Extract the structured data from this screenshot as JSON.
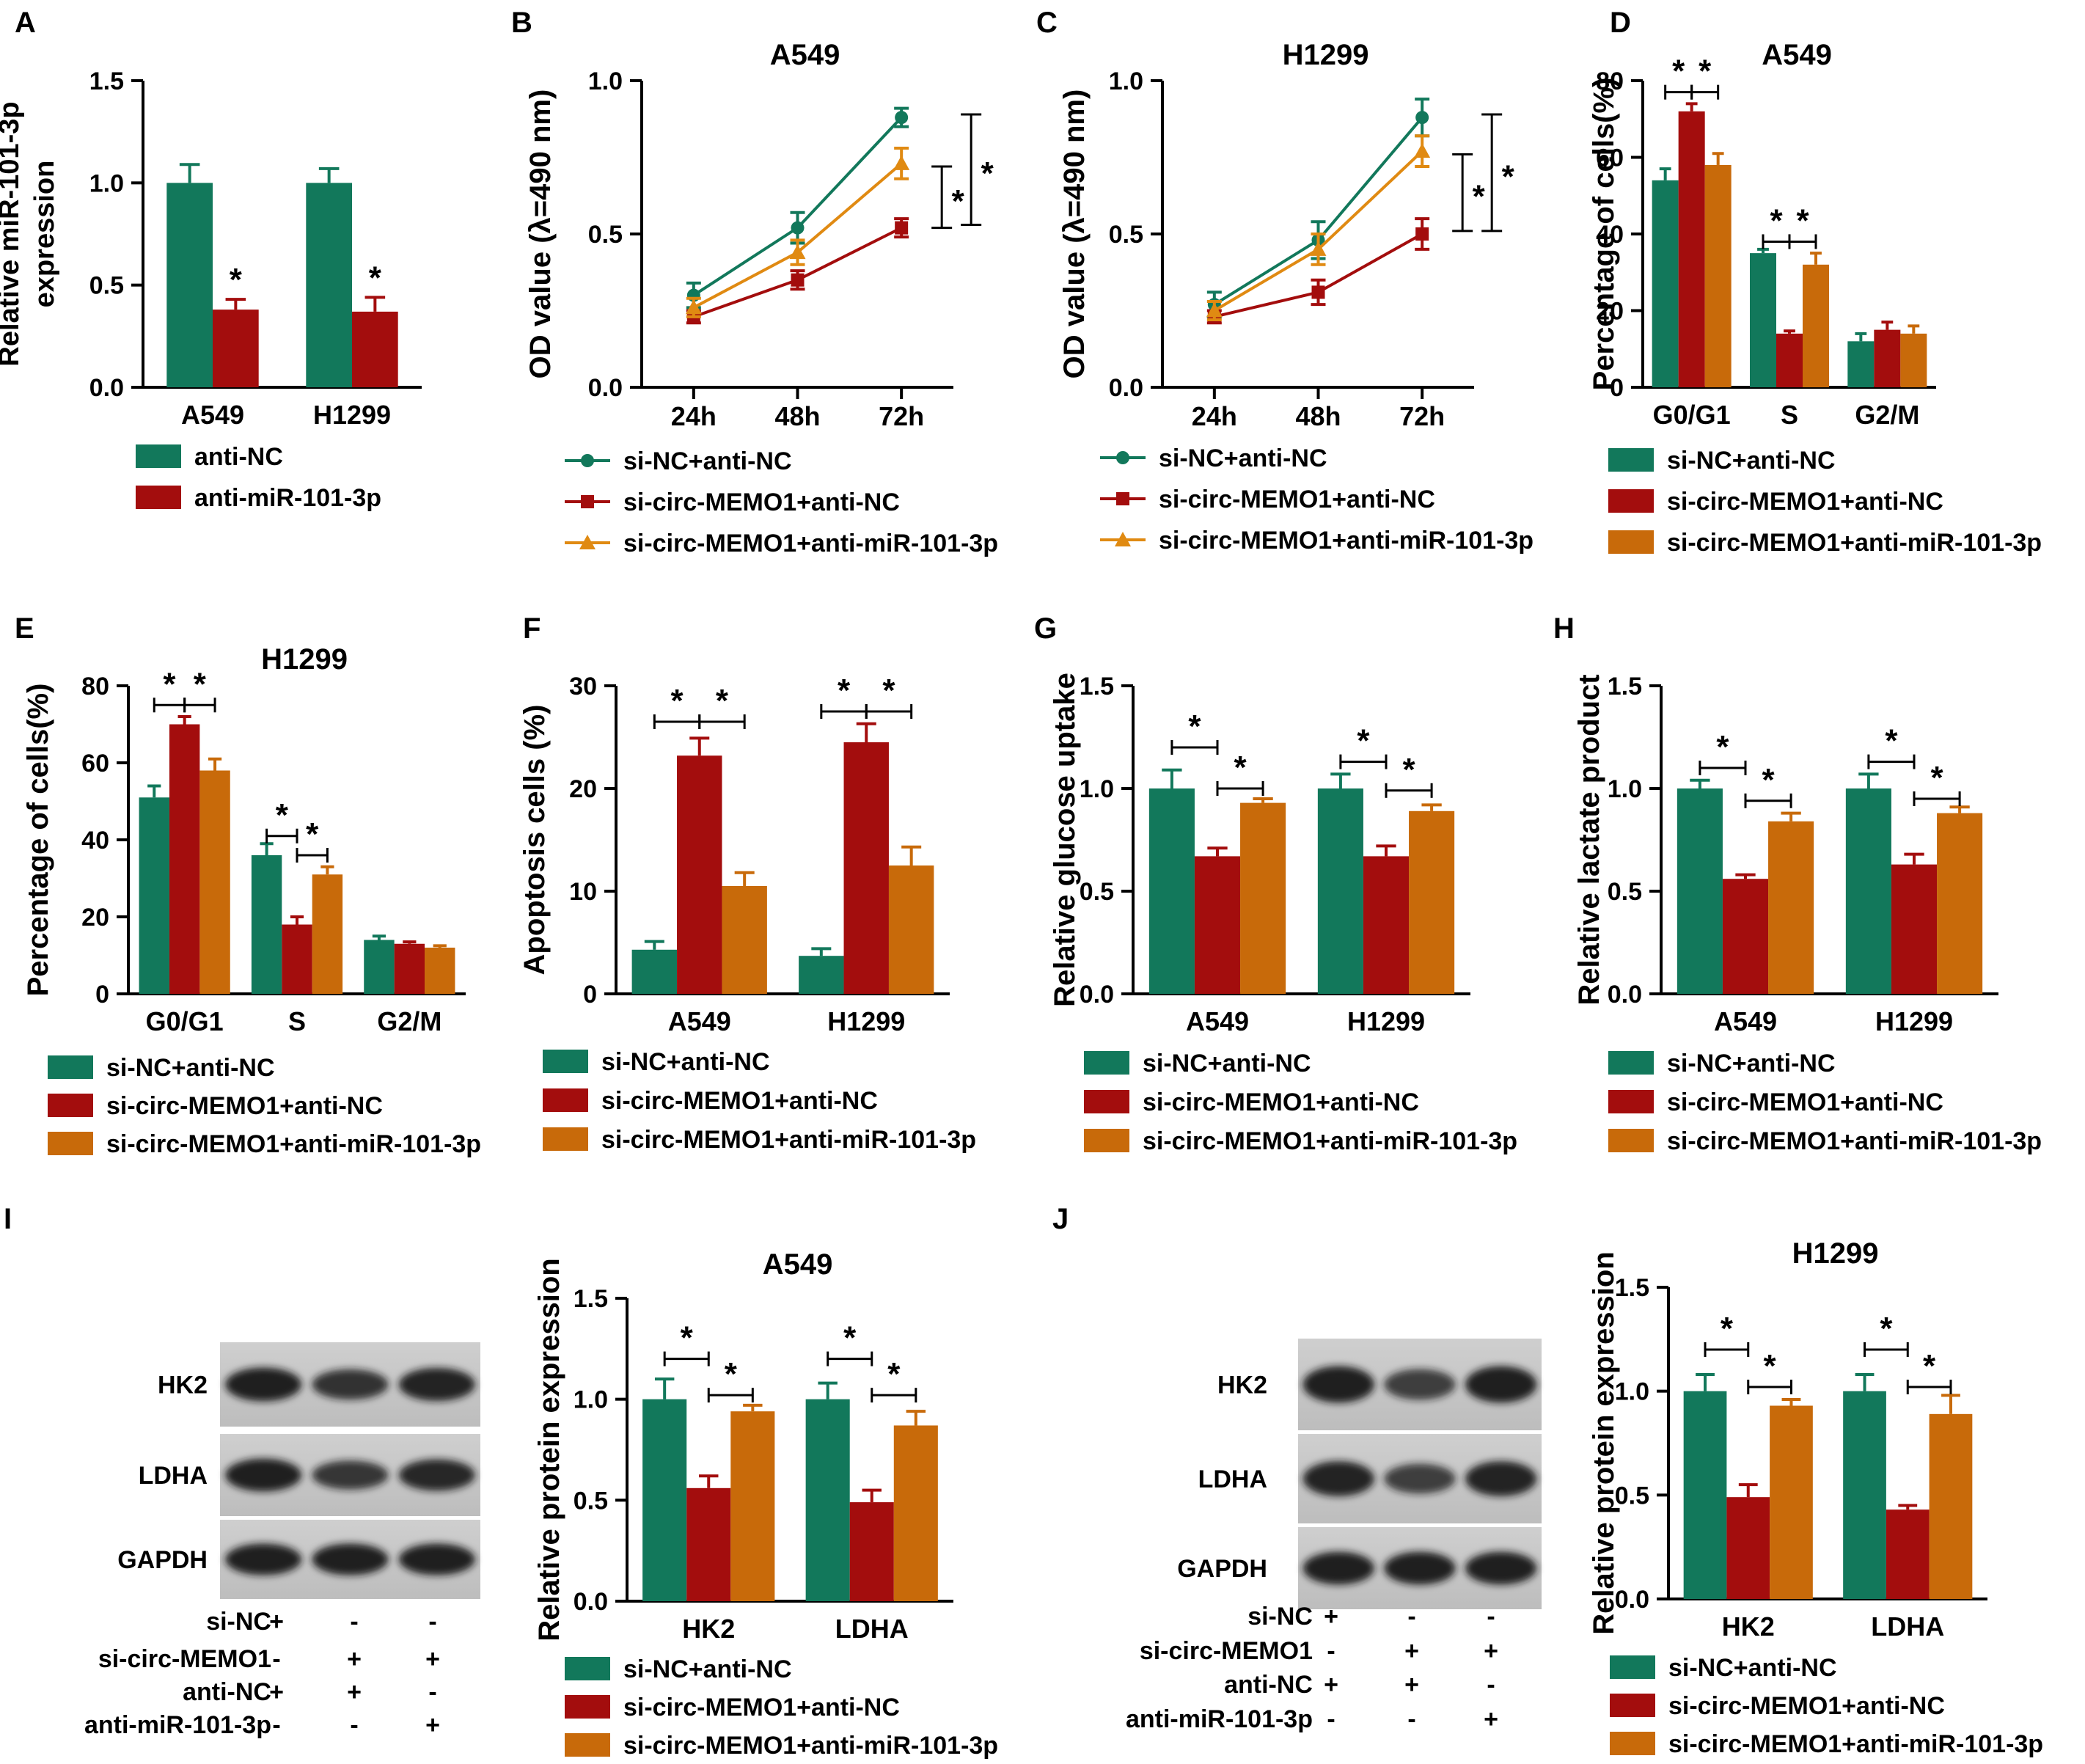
{
  "figure_title": "",
  "colors": {
    "green": "#12785B",
    "red": "#A30D0D",
    "orange": "#C86A0A",
    "axis": "#000000"
  },
  "icons": [
    "circle-marker-icon",
    "square-marker-icon",
    "triangle-marker-icon"
  ],
  "chart_data": [
    {
      "id": "A",
      "panel_label": "A",
      "type": "bar",
      "title": "",
      "ylabel_lines": [
        "Relative miR-101-3p",
        "expression"
      ],
      "categories": [
        "A549",
        "H1299"
      ],
      "ylim": [
        0,
        1.5
      ],
      "yticks": [
        "0.0",
        "0.5",
        "1.0",
        "1.5"
      ],
      "series": [
        {
          "name": "anti-NC",
          "color": "#12785B",
          "values": [
            1.0,
            1.0
          ],
          "errors": [
            0.09,
            0.07
          ]
        },
        {
          "name": "anti-miR-101-3p",
          "color": "#A30D0D",
          "values": [
            0.38,
            0.37
          ],
          "errors": [
            0.05,
            0.07
          ]
        }
      ],
      "sig": [
        {
          "type": "star",
          "cat": 0,
          "series": 1
        },
        {
          "type": "star",
          "cat": 1,
          "series": 1
        }
      ]
    },
    {
      "id": "B",
      "panel_label": "B",
      "type": "line",
      "title": "A549",
      "ylabel": "OD value (λ=490 nm)",
      "categories": [
        "24h",
        "48h",
        "72h"
      ],
      "ylim": [
        0,
        1.0
      ],
      "yticks": [
        "0.0",
        "0.5",
        "1.0"
      ],
      "series": [
        {
          "name": "si-NC+anti-NC",
          "color": "#12785B",
          "marker": "circle",
          "values": [
            0.3,
            0.52,
            0.88
          ],
          "errors": [
            0.04,
            0.05,
            0.03
          ]
        },
        {
          "name": "si-circ-MEMO1+anti-NC",
          "color": "#A30D0D",
          "marker": "square",
          "values": [
            0.23,
            0.35,
            0.52
          ],
          "errors": [
            0.02,
            0.03,
            0.03
          ]
        },
        {
          "name": "si-circ-MEMO1+anti-miR-101-3p",
          "color": "#E08A12",
          "marker": "triangle",
          "values": [
            0.26,
            0.44,
            0.73
          ],
          "errors": [
            0.03,
            0.04,
            0.05
          ]
        }
      ],
      "sig": [
        {
          "type": "vbracket",
          "y1": 0.72,
          "y2": 0.52,
          "level": 0
        },
        {
          "type": "vbracket",
          "y1": 0.89,
          "y2": 0.53,
          "level": 1
        }
      ]
    },
    {
      "id": "C",
      "panel_label": "C",
      "type": "line",
      "title": "H1299",
      "ylabel": "OD value (λ=490 nm)",
      "categories": [
        "24h",
        "48h",
        "72h"
      ],
      "ylim": [
        0,
        1.0
      ],
      "yticks": [
        "0.0",
        "0.5",
        "1.0"
      ],
      "series": [
        {
          "name": "si-NC+anti-NC",
          "color": "#12785B",
          "marker": "circle",
          "values": [
            0.27,
            0.48,
            0.88
          ],
          "errors": [
            0.04,
            0.06,
            0.06
          ]
        },
        {
          "name": "si-circ-MEMO1+anti-NC",
          "color": "#A30D0D",
          "marker": "square",
          "values": [
            0.23,
            0.31,
            0.5
          ],
          "errors": [
            0.02,
            0.04,
            0.05
          ]
        },
        {
          "name": "si-circ-MEMO1+anti-miR-101-3p",
          "color": "#E08A12",
          "marker": "triangle",
          "values": [
            0.25,
            0.45,
            0.77
          ],
          "errors": [
            0.03,
            0.05,
            0.05
          ]
        }
      ],
      "sig": [
        {
          "type": "vbracket",
          "y1": 0.76,
          "y2": 0.51,
          "level": 0
        },
        {
          "type": "vbracket",
          "y1": 0.89,
          "y2": 0.51,
          "level": 1
        }
      ]
    },
    {
      "id": "D",
      "panel_label": "D",
      "type": "bar",
      "title": "A549",
      "ylabel": "Percentage of cells(%)",
      "categories": [
        "G0/G1",
        "S",
        "G2/M"
      ],
      "ylim": [
        0,
        80
      ],
      "yticks": [
        "0",
        "20",
        "40",
        "60",
        "80"
      ],
      "series": [
        {
          "name": "si-NC+anti-NC",
          "color": "#12785B",
          "values": [
            54,
            35,
            12
          ],
          "errors": [
            3,
            1,
            2
          ]
        },
        {
          "name": "si-circ-MEMO1+anti-NC",
          "color": "#A30D0D",
          "values": [
            72,
            14,
            15
          ],
          "errors": [
            2,
            0.7,
            2
          ]
        },
        {
          "name": "si-circ-MEMO1+anti-miR-101-3p",
          "color": "#C86A0A",
          "values": [
            58,
            32,
            14
          ],
          "errors": [
            3,
            3,
            2
          ]
        }
      ],
      "sig": [
        {
          "type": "hbracket",
          "cat": 0,
          "from": 0,
          "to": 1,
          "y": 77
        },
        {
          "type": "hbracket",
          "cat": 0,
          "from": 1,
          "to": 2,
          "y": 77
        },
        {
          "type": "hbracket",
          "cat": 1,
          "from": 0,
          "to": 1,
          "y": 38
        },
        {
          "type": "hbracket",
          "cat": 1,
          "from": 1,
          "to": 2,
          "y": 38
        }
      ]
    },
    {
      "id": "E",
      "panel_label": "E",
      "type": "bar",
      "title": "H1299",
      "ylabel": "Percentage of cells(%)",
      "categories": [
        "G0/G1",
        "S",
        "G2/M"
      ],
      "ylim": [
        0,
        80
      ],
      "yticks": [
        "0",
        "20",
        "40",
        "60",
        "80"
      ],
      "series": [
        {
          "name": "si-NC+anti-NC",
          "color": "#12785B",
          "values": [
            51,
            36,
            14
          ],
          "errors": [
            3,
            3,
            1
          ]
        },
        {
          "name": "si-circ-MEMO1+anti-NC",
          "color": "#A30D0D",
          "values": [
            70,
            18,
            13
          ],
          "errors": [
            2,
            2,
            0.5
          ]
        },
        {
          "name": "si-circ-MEMO1+anti-miR-101-3p",
          "color": "#C86A0A",
          "values": [
            58,
            31,
            12
          ],
          "errors": [
            3,
            2,
            0.5
          ]
        }
      ],
      "sig": [
        {
          "type": "hbracket",
          "cat": 0,
          "from": 0,
          "to": 1,
          "y": 75
        },
        {
          "type": "hbracket",
          "cat": 0,
          "from": 1,
          "to": 2,
          "y": 75
        },
        {
          "type": "hbracket",
          "cat": 1,
          "from": 0,
          "to": 1,
          "y": 41
        },
        {
          "type": "hbracket",
          "cat": 1,
          "from": 1,
          "to": 2,
          "y": 36
        }
      ]
    },
    {
      "id": "F",
      "panel_label": "F",
      "type": "bar",
      "title": "",
      "ylabel": "Apoptosis cells (%)",
      "categories": [
        "A549",
        "H1299"
      ],
      "ylim": [
        0,
        30
      ],
      "yticks": [
        "0",
        "10",
        "20",
        "30"
      ],
      "series": [
        {
          "name": "si-NC+anti-NC",
          "color": "#12785B",
          "values": [
            4.3,
            3.7
          ],
          "errors": [
            0.8,
            0.7
          ]
        },
        {
          "name": "si-circ-MEMO1+anti-NC",
          "color": "#A30D0D",
          "values": [
            23.2,
            24.5
          ],
          "errors": [
            1.7,
            1.8
          ]
        },
        {
          "name": "si-circ-MEMO1+anti-miR-101-3p",
          "color": "#C86A0A",
          "values": [
            10.5,
            12.5
          ],
          "errors": [
            1.3,
            1.8
          ]
        }
      ],
      "sig": [
        {
          "type": "hbracket",
          "cat": 0,
          "from": 0,
          "to": 1,
          "y": 26.5
        },
        {
          "type": "hbracket",
          "cat": 0,
          "from": 1,
          "to": 2,
          "y": 26.5
        },
        {
          "type": "hbracket",
          "cat": 1,
          "from": 0,
          "to": 1,
          "y": 27.5
        },
        {
          "type": "hbracket",
          "cat": 1,
          "from": 1,
          "to": 2,
          "y": 27.5
        }
      ]
    },
    {
      "id": "G",
      "panel_label": "G",
      "type": "bar",
      "title": "",
      "ylabel": "Relative glucose uptake",
      "categories": [
        "A549",
        "H1299"
      ],
      "ylim": [
        0,
        1.5
      ],
      "yticks": [
        "0.0",
        "0.5",
        "1.0",
        "1.5"
      ],
      "series": [
        {
          "name": "si-NC+anti-NC",
          "color": "#12785B",
          "values": [
            1.0,
            1.0
          ],
          "errors": [
            0.09,
            0.07
          ]
        },
        {
          "name": "si-circ-MEMO1+anti-NC",
          "color": "#A30D0D",
          "values": [
            0.67,
            0.67
          ],
          "errors": [
            0.04,
            0.05
          ]
        },
        {
          "name": "si-circ-MEMO1+anti-miR-101-3p",
          "color": "#C86A0A",
          "values": [
            0.93,
            0.89
          ],
          "errors": [
            0.02,
            0.03
          ]
        }
      ],
      "sig": [
        {
          "type": "hbracket",
          "cat": 0,
          "from": 0,
          "to": 1,
          "y": 1.2
        },
        {
          "type": "hbracket",
          "cat": 0,
          "from": 1,
          "to": 2,
          "y": 1.0
        },
        {
          "type": "hbracket",
          "cat": 1,
          "from": 0,
          "to": 1,
          "y": 1.13
        },
        {
          "type": "hbracket",
          "cat": 1,
          "from": 1,
          "to": 2,
          "y": 0.99
        }
      ]
    },
    {
      "id": "H",
      "panel_label": "H",
      "type": "bar",
      "title": "",
      "ylabel": "Relative lactate product",
      "categories": [
        "A549",
        "H1299"
      ],
      "ylim": [
        0,
        1.5
      ],
      "yticks": [
        "0.0",
        "0.5",
        "1.0",
        "1.5"
      ],
      "series": [
        {
          "name": "si-NC+anti-NC",
          "color": "#12785B",
          "values": [
            1.0,
            1.0
          ],
          "errors": [
            0.04,
            0.07
          ]
        },
        {
          "name": "si-circ-MEMO1+anti-NC",
          "color": "#A30D0D",
          "values": [
            0.56,
            0.63
          ],
          "errors": [
            0.02,
            0.05
          ]
        },
        {
          "name": "si-circ-MEMO1+anti-miR-101-3p",
          "color": "#C86A0A",
          "values": [
            0.84,
            0.88
          ],
          "errors": [
            0.04,
            0.03
          ]
        }
      ],
      "sig": [
        {
          "type": "hbracket",
          "cat": 0,
          "from": 0,
          "to": 1,
          "y": 1.1
        },
        {
          "type": "hbracket",
          "cat": 0,
          "from": 1,
          "to": 2,
          "y": 0.94
        },
        {
          "type": "hbracket",
          "cat": 1,
          "from": 0,
          "to": 1,
          "y": 1.13
        },
        {
          "type": "hbracket",
          "cat": 1,
          "from": 1,
          "to": 2,
          "y": 0.95
        }
      ]
    },
    {
      "id": "I",
      "panel_label": "I",
      "type": "bar",
      "title": "A549",
      "ylabel": "Relative protein expression",
      "categories": [
        "HK2",
        "LDHA"
      ],
      "ylim": [
        0,
        1.5
      ],
      "yticks": [
        "0.0",
        "0.5",
        "1.0",
        "1.5"
      ],
      "series": [
        {
          "name": "si-NC+anti-NC",
          "color": "#12785B",
          "values": [
            1.0,
            1.0
          ],
          "errors": [
            0.1,
            0.08
          ]
        },
        {
          "name": "si-circ-MEMO1+anti-NC",
          "color": "#A30D0D",
          "values": [
            0.56,
            0.49
          ],
          "errors": [
            0.06,
            0.06
          ]
        },
        {
          "name": "si-circ-MEMO1+anti-miR-101-3p",
          "color": "#C86A0A",
          "values": [
            0.94,
            0.87
          ],
          "errors": [
            0.03,
            0.07
          ]
        }
      ],
      "sig": [
        {
          "type": "hbracket",
          "cat": 0,
          "from": 0,
          "to": 1,
          "y": 1.2
        },
        {
          "type": "hbracket",
          "cat": 0,
          "from": 1,
          "to": 2,
          "y": 1.02
        },
        {
          "type": "hbracket",
          "cat": 1,
          "from": 0,
          "to": 1,
          "y": 1.2
        },
        {
          "type": "hbracket",
          "cat": 1,
          "from": 1,
          "to": 2,
          "y": 1.02
        }
      ]
    },
    {
      "id": "J",
      "panel_label": "J",
      "type": "bar",
      "title": "H1299",
      "ylabel": "Relative protein expression",
      "categories": [
        "HK2",
        "LDHA"
      ],
      "ylim": [
        0,
        1.5
      ],
      "yticks": [
        "0.0",
        "0.5",
        "1.0",
        "1.5"
      ],
      "series": [
        {
          "name": "si-NC+anti-NC",
          "color": "#12785B",
          "values": [
            1.0,
            1.0
          ],
          "errors": [
            0.08,
            0.08
          ]
        },
        {
          "name": "si-circ-MEMO1+anti-NC",
          "color": "#A30D0D",
          "values": [
            0.49,
            0.43
          ],
          "errors": [
            0.06,
            0.02
          ]
        },
        {
          "name": "si-circ-MEMO1+anti-miR-101-3p",
          "color": "#C86A0A",
          "values": [
            0.93,
            0.89
          ],
          "errors": [
            0.03,
            0.09
          ]
        }
      ],
      "sig": [
        {
          "type": "hbracket",
          "cat": 0,
          "from": 0,
          "to": 1,
          "y": 1.2
        },
        {
          "type": "hbracket",
          "cat": 0,
          "from": 1,
          "to": 2,
          "y": 1.02
        },
        {
          "type": "hbracket",
          "cat": 1,
          "from": 0,
          "to": 1,
          "y": 1.2
        },
        {
          "type": "hbracket",
          "cat": 1,
          "from": 1,
          "to": 2,
          "y": 1.02
        }
      ]
    }
  ],
  "western_blots": [
    {
      "id": "I",
      "bands": [
        "HK2",
        "LDHA",
        "GAPDH"
      ],
      "band_intensity": [
        [
          1.0,
          0.75,
          0.95
        ],
        [
          1.0,
          0.7,
          0.9
        ],
        [
          1.0,
          1.0,
          1.0
        ]
      ],
      "conditions": [
        {
          "label": "si-NC",
          "marks": [
            "+",
            "-",
            "-"
          ]
        },
        {
          "label": "si-circ-MEMO1",
          "marks": [
            "-",
            "+",
            "+"
          ]
        },
        {
          "label": "anti-NC",
          "marks": [
            "+",
            "+",
            "-"
          ]
        },
        {
          "label": "anti-miR-101-3p",
          "marks": [
            "-",
            "-",
            "+"
          ]
        }
      ]
    },
    {
      "id": "J",
      "bands": [
        "HK2",
        "LDHA",
        "GAPDH"
      ],
      "band_intensity": [
        [
          1.0,
          0.6,
          1.0
        ],
        [
          0.95,
          0.6,
          0.95
        ],
        [
          1.0,
          1.0,
          1.0
        ]
      ],
      "conditions": [
        {
          "label": "si-NC",
          "marks": [
            "+",
            "-",
            "-"
          ]
        },
        {
          "label": "si-circ-MEMO1",
          "marks": [
            "-",
            "+",
            "+"
          ]
        },
        {
          "label": "anti-NC",
          "marks": [
            "+",
            "+",
            "-"
          ]
        },
        {
          "label": "anti-miR-101-3p",
          "marks": [
            "-",
            "-",
            "+"
          ]
        }
      ]
    }
  ]
}
